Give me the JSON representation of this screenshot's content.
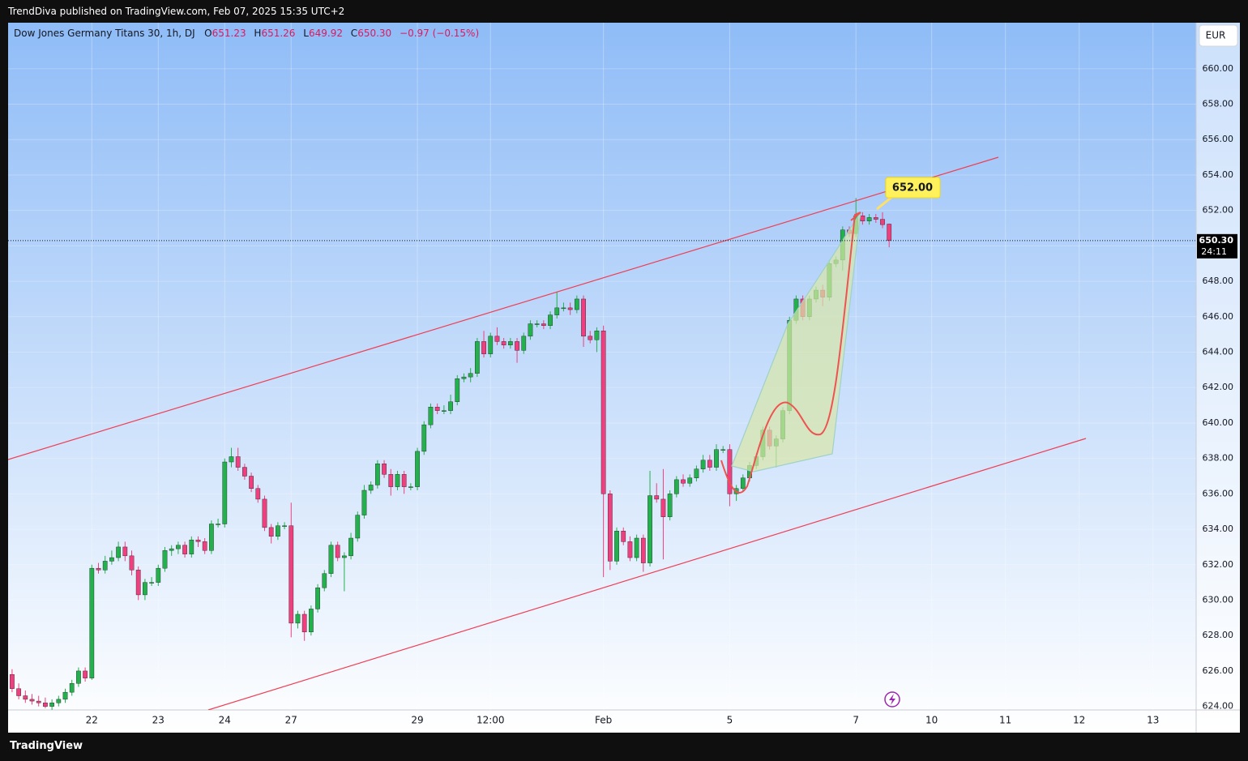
{
  "header": {
    "published": "TrendDiva published on TradingView.com, Feb 07, 2025 15:35 UTC+2",
    "footer": "TradingView"
  },
  "chart_data": {
    "type": "candlestick",
    "title": "Dow Jones Germany Titans 30, 1h, DJ",
    "ohlc_labels": [
      "O",
      "H",
      "L",
      "C"
    ],
    "ohlc_values": [
      {
        "value": 651.23,
        "label": "651.23"
      },
      {
        "value": 651.26,
        "label": "651.26"
      },
      {
        "value": 649.92,
        "label": "649.92"
      },
      {
        "value": 650.3,
        "label": "650.30"
      }
    ],
    "change": "−0.97 (−0.15%)",
    "currency": "EUR",
    "last_price": {
      "value": 650.3,
      "label": "650.30"
    },
    "countdown": "24:11",
    "annotation": "652.00",
    "up_color": "#22b14c",
    "down_color": "#ef3f7f",
    "grid": true,
    "xlim": [
      -0.6,
      178.2
    ],
    "ylim": [
      623.8,
      662.6
    ],
    "xticks": [
      {
        "value": 12,
        "label": "22"
      },
      {
        "value": 22,
        "label": "23"
      },
      {
        "value": 32,
        "label": "24"
      },
      {
        "value": 42,
        "label": "27"
      },
      {
        "value": 61,
        "label": "29"
      },
      {
        "value": 72,
        "label": "12:00"
      },
      {
        "value": 89,
        "label": "Feb"
      },
      {
        "value": 108,
        "label": "5"
      },
      {
        "value": 127,
        "label": "7"
      },
      {
        "value": 138.4,
        "label": "10"
      },
      {
        "value": 149.5,
        "label": "11"
      },
      {
        "value": 160.6,
        "label": "12"
      },
      {
        "value": 171.7,
        "label": "13"
      }
    ],
    "yticks": [
      {
        "value": 624,
        "label": "624.00"
      },
      {
        "value": 626,
        "label": "626.00"
      },
      {
        "value": 628,
        "label": "628.00"
      },
      {
        "value": 630,
        "label": "630.00"
      },
      {
        "value": 632,
        "label": "632.00"
      },
      {
        "value": 634,
        "label": "634.00"
      },
      {
        "value": 636,
        "label": "636.00"
      },
      {
        "value": 638,
        "label": "638.00"
      },
      {
        "value": 640,
        "label": "640.00"
      },
      {
        "value": 642,
        "label": "642.00"
      },
      {
        "value": 644,
        "label": "644.00"
      },
      {
        "value": 646,
        "label": "646.00"
      },
      {
        "value": 648,
        "label": "648.00"
      },
      {
        "value": 650,
        "label": "650.00"
      },
      {
        "value": 652,
        "label": "652.00"
      },
      {
        "value": 654,
        "label": "654.00"
      },
      {
        "value": 656,
        "label": "656.00"
      },
      {
        "value": 658,
        "label": "658.00"
      },
      {
        "value": 660,
        "label": "660.00"
      }
    ],
    "candles": [
      [
        625.8,
        626.1,
        624.8,
        625.0
      ],
      [
        625.0,
        625.3,
        624.4,
        624.6
      ],
      [
        624.6,
        624.9,
        624.2,
        624.4
      ],
      [
        624.4,
        624.7,
        624.1,
        624.3
      ],
      [
        624.3,
        624.6,
        624.0,
        624.2
      ],
      [
        624.2,
        624.5,
        623.9,
        624.0
      ],
      [
        624.0,
        624.4,
        623.8,
        624.2
      ],
      [
        624.2,
        624.6,
        624.0,
        624.4
      ],
      [
        624.4,
        625.0,
        624.2,
        624.8
      ],
      [
        624.8,
        625.5,
        624.6,
        625.3
      ],
      [
        625.3,
        626.2,
        625.1,
        626.0
      ],
      [
        626.0,
        626.2,
        625.4,
        625.6
      ],
      [
        625.6,
        632.0,
        625.5,
        631.8
      ],
      [
        631.8,
        632.1,
        631.5,
        631.7
      ],
      [
        631.7,
        632.5,
        631.5,
        632.2
      ],
      [
        632.2,
        632.8,
        632.0,
        632.4
      ],
      [
        632.4,
        633.3,
        632.2,
        633.0
      ],
      [
        633.0,
        633.3,
        632.2,
        632.5
      ],
      [
        632.5,
        632.8,
        631.4,
        631.7
      ],
      [
        631.7,
        631.9,
        630.0,
        630.3
      ],
      [
        630.3,
        631.2,
        630.0,
        631.0
      ],
      [
        631.0,
        631.3,
        630.8,
        631.0
      ],
      [
        631.0,
        632.0,
        630.8,
        631.8
      ],
      [
        631.8,
        633.0,
        631.6,
        632.8
      ],
      [
        632.8,
        633.1,
        632.5,
        632.9
      ],
      [
        632.9,
        633.3,
        632.6,
        633.1
      ],
      [
        633.1,
        633.3,
        632.4,
        632.6
      ],
      [
        632.6,
        633.6,
        632.4,
        633.4
      ],
      [
        633.4,
        633.6,
        633.0,
        633.3
      ],
      [
        633.3,
        633.5,
        632.6,
        632.8
      ],
      [
        632.8,
        634.5,
        632.6,
        634.3
      ],
      [
        634.3,
        634.6,
        634.1,
        634.3
      ],
      [
        634.3,
        638.0,
        634.1,
        637.8
      ],
      [
        637.8,
        638.6,
        637.5,
        638.1
      ],
      [
        638.1,
        638.6,
        637.3,
        637.5
      ],
      [
        637.5,
        637.7,
        636.8,
        637.0
      ],
      [
        637.0,
        637.2,
        636.1,
        636.3
      ],
      [
        636.3,
        636.5,
        635.5,
        635.7
      ],
      [
        635.7,
        635.9,
        633.9,
        634.1
      ],
      [
        634.1,
        634.3,
        633.2,
        633.6
      ],
      [
        633.6,
        634.4,
        633.4,
        634.2
      ],
      [
        634.2,
        634.4,
        634.0,
        634.2
      ],
      [
        634.2,
        635.5,
        627.9,
        628.7
      ],
      [
        628.7,
        629.4,
        628.4,
        629.2
      ],
      [
        629.2,
        629.4,
        627.7,
        628.2
      ],
      [
        628.2,
        629.7,
        628.0,
        629.5
      ],
      [
        629.5,
        630.9,
        629.3,
        630.7
      ],
      [
        630.7,
        631.7,
        630.5,
        631.5
      ],
      [
        631.5,
        633.3,
        631.3,
        633.1
      ],
      [
        633.1,
        633.3,
        632.2,
        632.4
      ],
      [
        632.4,
        632.7,
        630.5,
        632.5
      ],
      [
        632.5,
        633.8,
        632.3,
        633.5
      ],
      [
        633.5,
        635.0,
        633.3,
        634.8
      ],
      [
        634.8,
        636.5,
        634.6,
        636.2
      ],
      [
        636.2,
        636.7,
        636.0,
        636.5
      ],
      [
        636.5,
        637.9,
        636.3,
        637.7
      ],
      [
        637.7,
        637.9,
        636.9,
        637.1
      ],
      [
        637.1,
        637.4,
        635.9,
        636.4
      ],
      [
        636.4,
        637.3,
        636.2,
        637.1
      ],
      [
        637.1,
        637.3,
        636.0,
        636.4
      ],
      [
        636.4,
        636.6,
        636.2,
        636.4
      ],
      [
        636.4,
        638.6,
        636.2,
        638.4
      ],
      [
        638.4,
        640.1,
        638.2,
        639.9
      ],
      [
        639.9,
        641.1,
        639.7,
        640.9
      ],
      [
        640.9,
        641.1,
        640.5,
        640.7
      ],
      [
        640.7,
        641.0,
        640.5,
        640.7
      ],
      [
        640.7,
        641.6,
        640.5,
        641.2
      ],
      [
        641.2,
        642.7,
        641.0,
        642.5
      ],
      [
        642.5,
        642.8,
        642.3,
        642.6
      ],
      [
        642.6,
        643.1,
        642.3,
        642.8
      ],
      [
        642.8,
        644.8,
        642.6,
        644.6
      ],
      [
        644.6,
        645.2,
        643.7,
        643.9
      ],
      [
        643.9,
        645.1,
        643.7,
        644.9
      ],
      [
        644.9,
        645.4,
        644.4,
        644.6
      ],
      [
        644.6,
        644.8,
        644.2,
        644.4
      ],
      [
        644.4,
        644.8,
        644.2,
        644.6
      ],
      [
        644.6,
        644.8,
        643.4,
        644.1
      ],
      [
        644.1,
        645.1,
        643.9,
        644.9
      ],
      [
        644.9,
        645.8,
        644.7,
        645.6
      ],
      [
        645.6,
        645.8,
        645.4,
        645.6
      ],
      [
        645.6,
        645.8,
        645.3,
        645.5
      ],
      [
        645.5,
        646.3,
        645.3,
        646.1
      ],
      [
        646.1,
        647.4,
        645.9,
        646.5
      ],
      [
        646.5,
        646.8,
        646.3,
        646.5
      ],
      [
        646.5,
        646.8,
        646.1,
        646.4
      ],
      [
        646.4,
        647.2,
        646.2,
        647.0
      ],
      [
        647.0,
        647.2,
        644.3,
        644.9
      ],
      [
        644.9,
        645.2,
        644.5,
        644.7
      ],
      [
        644.7,
        645.4,
        644.0,
        645.2
      ],
      [
        645.2,
        645.5,
        631.3,
        636.0
      ],
      [
        636.0,
        636.2,
        631.7,
        632.2
      ],
      [
        632.2,
        634.1,
        632.0,
        633.9
      ],
      [
        633.9,
        634.1,
        633.1,
        633.3
      ],
      [
        633.3,
        633.6,
        632.2,
        632.4
      ],
      [
        632.4,
        633.7,
        632.2,
        633.5
      ],
      [
        633.5,
        633.7,
        631.6,
        632.1
      ],
      [
        632.1,
        637.3,
        631.9,
        635.9
      ],
      [
        635.9,
        636.6,
        635.5,
        635.7
      ],
      [
        635.7,
        637.4,
        632.3,
        634.7
      ],
      [
        634.7,
        636.2,
        634.5,
        636.0
      ],
      [
        636.0,
        637.0,
        635.8,
        636.8
      ],
      [
        636.8,
        637.1,
        636.4,
        636.6
      ],
      [
        636.6,
        637.1,
        636.4,
        636.9
      ],
      [
        636.9,
        637.6,
        636.7,
        637.4
      ],
      [
        637.4,
        638.2,
        637.2,
        637.9
      ],
      [
        637.9,
        638.2,
        637.3,
        637.5
      ],
      [
        637.5,
        638.8,
        637.3,
        638.5
      ],
      [
        638.5,
        638.7,
        638.3,
        638.5
      ],
      [
        638.5,
        638.8,
        635.3,
        636.0
      ],
      [
        636.0,
        636.5,
        635.6,
        636.3
      ],
      [
        636.3,
        637.1,
        636.1,
        636.9
      ],
      [
        636.9,
        637.8,
        636.7,
        637.6
      ],
      [
        637.6,
        638.3,
        637.4,
        638.1
      ],
      [
        638.1,
        639.8,
        637.9,
        639.6
      ],
      [
        639.6,
        639.8,
        638.5,
        638.7
      ],
      [
        638.7,
        639.3,
        637.5,
        639.1
      ],
      [
        639.1,
        640.9,
        638.9,
        640.7
      ],
      [
        640.7,
        646.0,
        640.5,
        645.8
      ],
      [
        645.8,
        647.2,
        645.6,
        647.0
      ],
      [
        647.0,
        647.2,
        645.8,
        646.0
      ],
      [
        646.0,
        647.2,
        645.8,
        647.0
      ],
      [
        647.0,
        647.7,
        646.8,
        647.5
      ],
      [
        647.5,
        647.8,
        646.6,
        647.1
      ],
      [
        647.1,
        649.2,
        646.9,
        649.0
      ],
      [
        649.0,
        649.4,
        648.8,
        649.2
      ],
      [
        649.2,
        651.1,
        648.6,
        650.9
      ],
      [
        650.9,
        651.1,
        650.5,
        650.7
      ],
      [
        650.7,
        652.7,
        650.5,
        651.7
      ],
      [
        651.7,
        651.9,
        651.2,
        651.4
      ],
      [
        651.4,
        651.8,
        651.2,
        651.6
      ],
      [
        651.6,
        651.8,
        651.3,
        651.5
      ],
      [
        651.5,
        651.9,
        651.0,
        651.2
      ],
      [
        651.23,
        651.26,
        649.92,
        650.3
      ]
    ]
  }
}
